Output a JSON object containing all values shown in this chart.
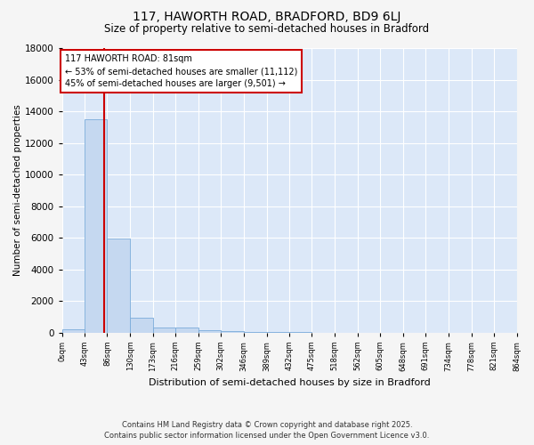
{
  "title": "117, HAWORTH ROAD, BRADFORD, BD9 6LJ",
  "subtitle": "Size of property relative to semi-detached houses in Bradford",
  "xlabel": "Distribution of semi-detached houses by size in Bradford",
  "ylabel": "Number of semi-detached properties",
  "bar_color": "#c5d8f0",
  "bar_edge_color": "#7aabda",
  "background_color": "#dce8f8",
  "grid_color": "#ffffff",
  "fig_background": "#f5f5f5",
  "bin_edges": [
    0,
    43,
    86,
    130,
    173,
    216,
    259,
    302,
    346,
    389,
    432,
    475,
    518,
    562,
    605,
    648,
    691,
    734,
    778,
    821,
    864
  ],
  "bar_heights": [
    200,
    13500,
    5950,
    950,
    320,
    330,
    150,
    90,
    40,
    15,
    8,
    3,
    1,
    0,
    0,
    0,
    0,
    0,
    0,
    0
  ],
  "ylim": [
    0,
    18000
  ],
  "yticks": [
    0,
    2000,
    4000,
    6000,
    8000,
    10000,
    12000,
    14000,
    16000,
    18000
  ],
  "property_size": 81,
  "red_line_color": "#cc0000",
  "annotation_title": "117 HAWORTH ROAD: 81sqm",
  "annotation_line1": "← 53% of semi-detached houses are smaller (11,112)",
  "annotation_line2": "45% of semi-detached houses are larger (9,501) →",
  "annotation_box_color": "#ffffff",
  "annotation_border_color": "#cc0000",
  "footer_line1": "Contains HM Land Registry data © Crown copyright and database right 2025.",
  "footer_line2": "Contains public sector information licensed under the Open Government Licence v3.0.",
  "tick_labels": [
    "0sqm",
    "43sqm",
    "86sqm",
    "130sqm",
    "173sqm",
    "216sqm",
    "259sqm",
    "302sqm",
    "346sqm",
    "389sqm",
    "432sqm",
    "475sqm",
    "518sqm",
    "562sqm",
    "605sqm",
    "648sqm",
    "691sqm",
    "734sqm",
    "778sqm",
    "821sqm",
    "864sqm"
  ]
}
